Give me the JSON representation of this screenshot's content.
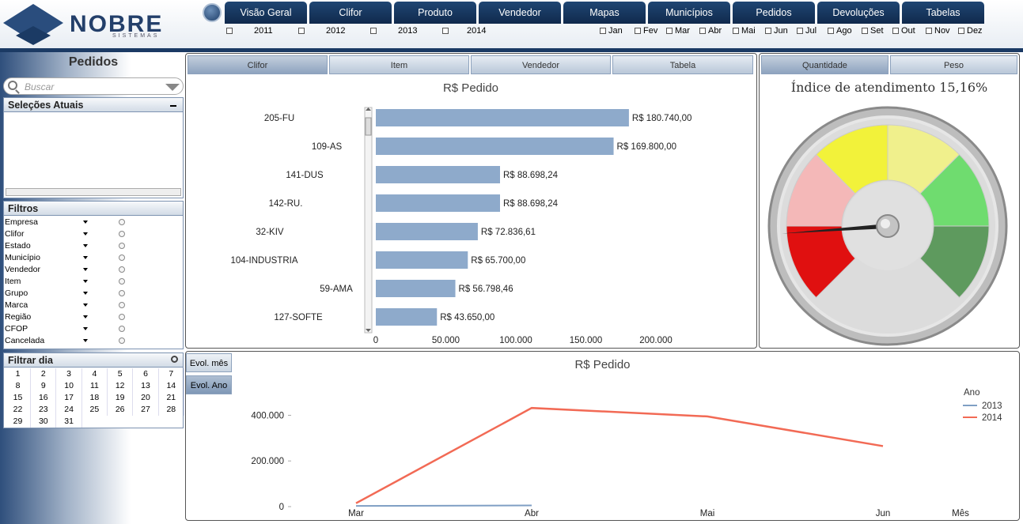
{
  "brand": {
    "name": "NOBRE",
    "tagline": "SISTEMAS"
  },
  "nav": {
    "tabs": [
      "Visão Geral",
      "Clifor",
      "Produto",
      "Vendedor",
      "Mapas",
      "Municípios",
      "Pedidos",
      "Devoluções",
      "Tabelas"
    ]
  },
  "years": [
    "2011",
    "2012",
    "2013",
    "2014"
  ],
  "months": [
    "Jan",
    "Fev",
    "Mar",
    "Abr",
    "Mai",
    "Jun",
    "Jul",
    "Ago",
    "Set",
    "Out",
    "Nov",
    "Dez"
  ],
  "sidebar": {
    "title": "Pedidos",
    "search_placeholder": "Buscar",
    "current_selections": "Seleções Atuais",
    "filters_title": "Filtros",
    "filters": [
      "Empresa",
      "Clifor",
      "Estado",
      "Município",
      "Vendedor",
      "Item",
      "Grupo",
      "Marca",
      "Região",
      "CFOP",
      "Cancelada"
    ],
    "day_filter_title": "Filtrar dia",
    "days": [
      "1",
      "2",
      "3",
      "4",
      "5",
      "6",
      "7",
      "8",
      "9",
      "10",
      "11",
      "12",
      "13",
      "14",
      "15",
      "16",
      "17",
      "18",
      "19",
      "20",
      "21",
      "22",
      "23",
      "24",
      "25",
      "26",
      "27",
      "28",
      "29",
      "30",
      "31"
    ]
  },
  "bar_panel": {
    "tabs": [
      "Clifor",
      "Item",
      "Vendedor",
      "Tabela"
    ],
    "active_tab": "Clifor"
  },
  "gauge_panel": {
    "tabs": [
      "Quantidade",
      "Peso"
    ],
    "active_tab": "Quantidade",
    "title": "Índice de atendimento 15,16%"
  },
  "line_panel": {
    "buttons": [
      "Evol. mês",
      "Evol. Ano"
    ],
    "active_button": "Evol. Ano"
  },
  "chart_data": [
    {
      "type": "bar",
      "orientation": "horizontal",
      "title": "R$ Pedido",
      "categories": [
        "205-FU",
        "109-AS",
        "141-DUS",
        "142-RU.",
        "32-KIV",
        "104-INDUSTRIA",
        "59-AMA",
        "127-SOFTE"
      ],
      "values": [
        180740.0,
        169800.0,
        88698.24,
        88698.24,
        72836.61,
        65700.0,
        56798.46,
        43650.0
      ],
      "value_labels": [
        "R$ 180.740,00",
        "R$ 169.800,00",
        "R$ 88.698,24",
        "R$ 88.698,24",
        "R$ 72.836,61",
        "R$ 65.700,00",
        "R$ 56.798,46",
        "R$ 43.650,00"
      ],
      "xlim": [
        0,
        200000
      ],
      "xticks": [
        "0",
        "50.000",
        "100.000",
        "150.000",
        "200.000"
      ],
      "colors": [
        "#8eaacb"
      ]
    },
    {
      "type": "gauge",
      "value": 15.16,
      "range": [
        0,
        100
      ],
      "colors": [
        "#e01010",
        "#f4b8b8",
        "#f2f23a",
        "#f0f08c",
        "#6fdc6f",
        "#5e9a5e"
      ]
    },
    {
      "type": "line",
      "title": "R$ Pedido",
      "xlabel": "Mês",
      "x": [
        "Mar",
        "Abr",
        "Mai",
        "Jun"
      ],
      "legend_title": "Ano",
      "legend_position": "right",
      "ylim": [
        0,
        450000
      ],
      "yticks": [
        "0",
        "200.000",
        "400.000"
      ],
      "series": [
        {
          "name": "2013",
          "color": "#7f9fc4",
          "values": [
            3000,
            5000,
            null,
            null
          ]
        },
        {
          "name": "2014",
          "color": "#f26a55",
          "values": [
            15000,
            432000,
            395000,
            265000
          ]
        }
      ]
    }
  ]
}
